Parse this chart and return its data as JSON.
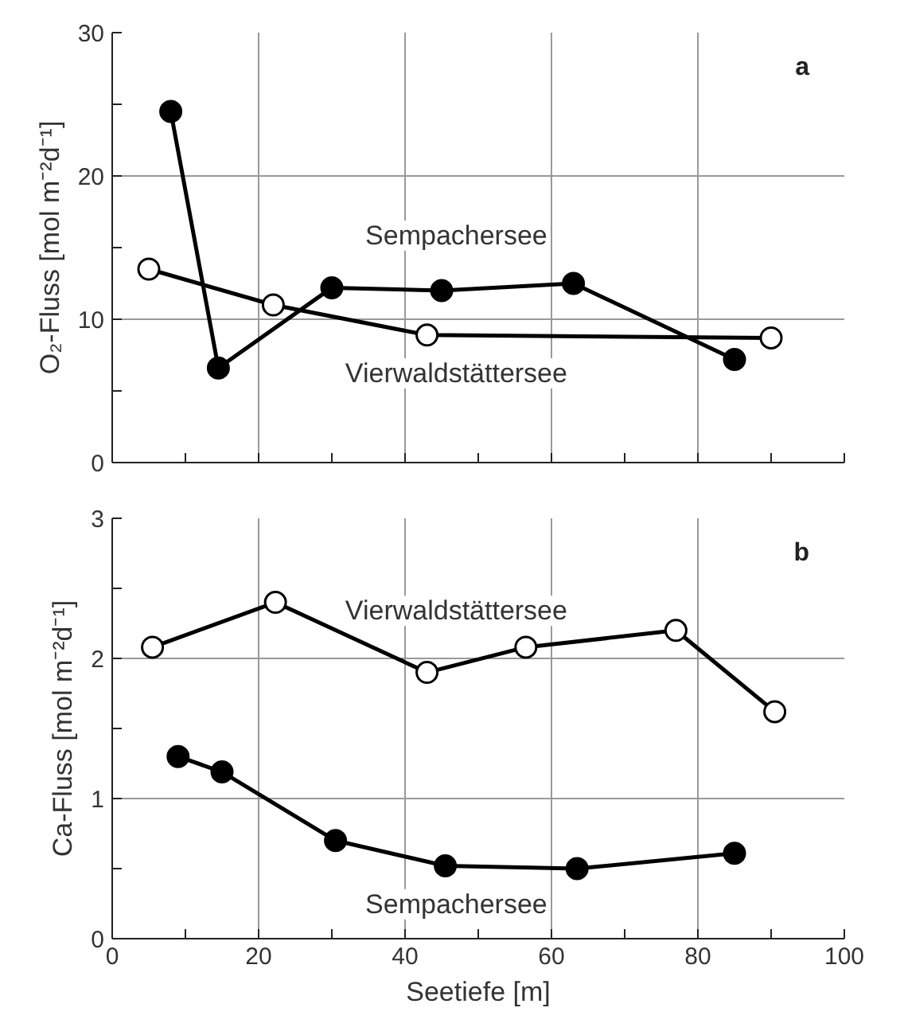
{
  "chart_data": [
    {
      "type": "line",
      "ylabel": "O₂-Fluss [mol m⁻²d⁻¹]",
      "marker": "circle",
      "grid": true,
      "tick_labels": "y",
      "xlim": [
        0,
        100
      ],
      "ylim": [
        0,
        30
      ],
      "xticks": [
        0,
        {
          "value": 10,
          "label": null
        },
        20,
        {
          "value": 30,
          "label": null
        },
        40,
        {
          "value": 50,
          "label": null
        },
        60,
        {
          "value": 70,
          "label": null
        },
        80,
        {
          "value": 90,
          "label": null
        },
        100
      ],
      "yticks": [
        0,
        {
          "value": 5,
          "label": null
        },
        10,
        {
          "value": 15,
          "label": null
        },
        20,
        {
          "value": 25,
          "label": null
        },
        30
      ],
      "series": [
        {
          "name": "Sempachersee",
          "color": "#000000",
          "x": [
            8,
            14.5,
            30,
            45,
            63,
            85
          ],
          "values": [
            24.5,
            6.6,
            12.2,
            12,
            12.5,
            7.2
          ]
        },
        {
          "name": "Vierwaldstättersee",
          "color": "#000000",
          "colors": [
            "#ffffff",
            "#ffffff",
            "#ffffff",
            "#ffffff"
          ],
          "x": [
            5,
            22,
            43,
            90
          ],
          "values": [
            13.5,
            11,
            8.9,
            8.7
          ]
        }
      ],
      "annotations": [
        "a"
      ]
    },
    {
      "type": "line",
      "xlabel": "Seetiefe [m]",
      "ylabel": "Ca-Fluss [mol m⁻²d⁻¹]",
      "marker": "circle",
      "grid": true,
      "xlim": [
        0,
        100
      ],
      "ylim": [
        0,
        3
      ],
      "xticks": [
        0,
        {
          "value": 10,
          "label": null
        },
        20,
        {
          "value": 30,
          "label": null
        },
        40,
        {
          "value": 50,
          "label": null
        },
        60,
        {
          "value": 70,
          "label": null
        },
        80,
        {
          "value": 90,
          "label": null
        },
        100
      ],
      "yticks": [
        0,
        {
          "value": 0.5,
          "label": null
        },
        1,
        {
          "value": 1.5,
          "label": null
        },
        2,
        {
          "value": 2.5,
          "label": null
        },
        3
      ],
      "series": [
        {
          "name": "Vierwaldstättersee",
          "color": "#000000",
          "colors": [
            "#ffffff",
            "#ffffff",
            "#ffffff",
            "#ffffff",
            "#ffffff",
            "#ffffff"
          ],
          "x": [
            5.5,
            22.3,
            43,
            56.5,
            77,
            90.5
          ],
          "values": [
            2.08,
            2.4,
            1.9,
            2.08,
            2.2,
            1.62
          ]
        },
        {
          "name": "Sempachersee",
          "color": "#000000",
          "x": [
            9,
            15,
            30.5,
            45.5,
            63.5,
            85
          ],
          "values": [
            1.3,
            1.19,
            0.7,
            0.52,
            0.5,
            0.61
          ]
        }
      ],
      "annotations": [
        "b"
      ]
    }
  ]
}
